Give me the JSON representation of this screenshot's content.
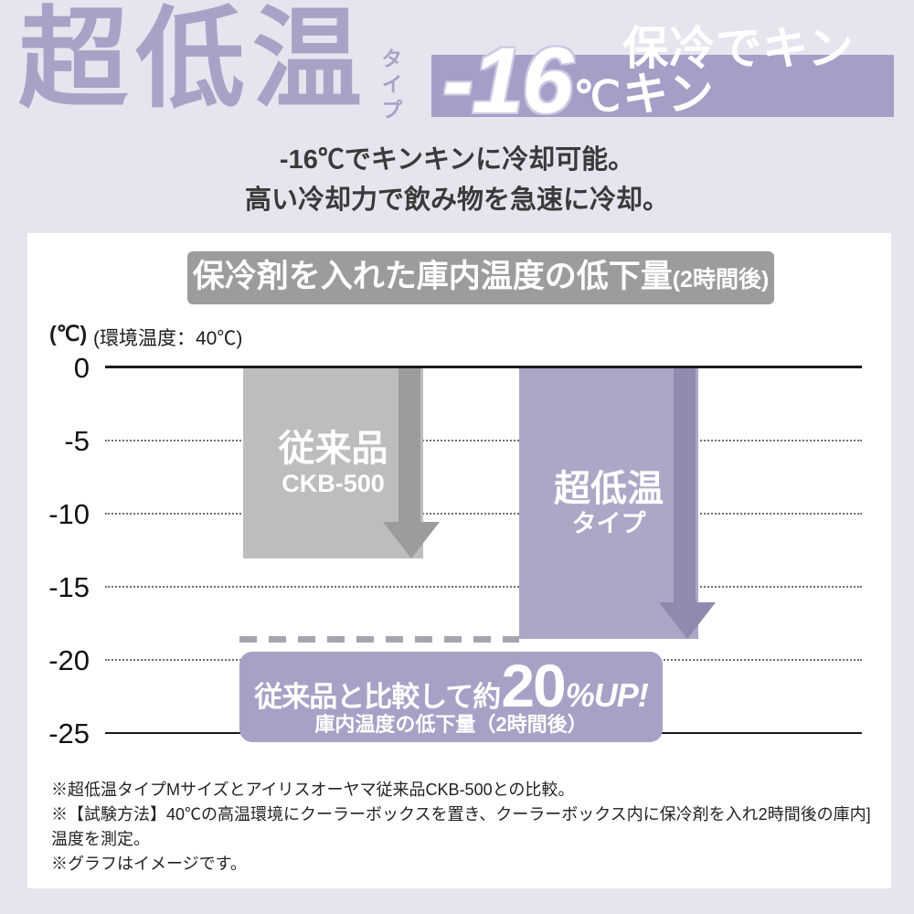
{
  "colors": {
    "background": "#e6e4ee",
    "accent_purple": "#a9a2c6",
    "badge_bg": "#a59ec6",
    "gray_bar": "#bdbdbd",
    "gray_arrow": "#9c9c9c",
    "purple_bar": "#ada6c6",
    "purple_arrow": "#9089b0",
    "title_bar_bg": "#9c9c9c",
    "callout_bg": "#a8a1c6",
    "dash_line": "#a8a4ae"
  },
  "hero": {
    "title": "超低温",
    "title_suffix": "タイプ",
    "badge": {
      "number": "-16",
      "degree": "℃",
      "text": "保冷でキンキン"
    },
    "subtitle_line1": "-16℃でキンキンに冷却可能。",
    "subtitle_line2": "高い冷却力で飲み物を急速に冷却。"
  },
  "chart": {
    "header": {
      "main": "保冷剤を入れた庫内温度の低下量",
      "paren": "(2時間後)"
    },
    "unit_label": "(℃)",
    "condition_label": "(環境温度：40℃)",
    "bars": [
      {
        "label": "従来品",
        "sublabel": "CKB-500",
        "value": -13,
        "color": "#bdbdbd"
      },
      {
        "label": "超低温",
        "sublabel": "タイプ",
        "value": -18.5,
        "color": "#ada6c6"
      }
    ],
    "callout": {
      "prefix": "従来品と比較して約",
      "big": "20",
      "suffix": "%UP!",
      "caption": "庫内温度の低下量（2時間後）"
    },
    "notes": [
      "※超低温タイプMサイズとアイリスオーヤマ従来品CKB-500との比較。",
      "※【試験方法】40℃の高温環境にクーラーボックスを置き、クーラーボックス内に保冷剤を入れ2時間後の庫内]",
      "温度を測定。",
      "※グラフはイメージです。"
    ]
  },
  "chart_data": {
    "type": "bar",
    "title": "保冷剤を入れた庫内温度の低下量(2時間後)",
    "categories": [
      "従来品 CKB-500",
      "超低温タイプ"
    ],
    "values": [
      -13,
      -18.5
    ],
    "ylabel": "(℃)",
    "ylim": [
      -25,
      0
    ],
    "yticks": [
      0,
      -5,
      -10,
      -15,
      -20,
      -25
    ],
    "condition": "環境温度：40℃",
    "reference_line": -18.5,
    "annotation": "従来品と比較して約20%UP! 庫内温度の低下量（2時間後）",
    "grid": "horizontal dotted at -5,-10,-15,-20; solid at 0 and -25",
    "legend": "none"
  }
}
